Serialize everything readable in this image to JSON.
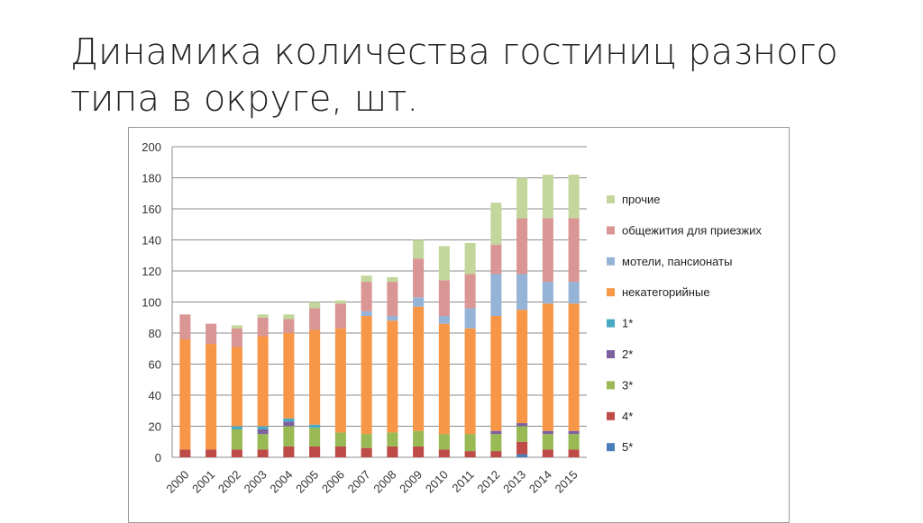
{
  "slide": {
    "title_line1": "Динамика количества гостиниц разного",
    "title_line2": "типа в округе, шт."
  },
  "chart_data": {
    "type": "bar",
    "stacked": true,
    "title": "",
    "xlabel": "",
    "ylabel": "",
    "ylim": [
      0,
      200
    ],
    "yticks": [
      0,
      20,
      40,
      60,
      80,
      100,
      120,
      140,
      160,
      180,
      200
    ],
    "grid": true,
    "legend_position": "right",
    "categories": [
      "2000",
      "2001",
      "2002",
      "2003",
      "2004",
      "2005",
      "2006",
      "2007",
      "2008",
      "2009",
      "2010",
      "2011",
      "2012",
      "2013",
      "2014",
      "2015"
    ],
    "series": [
      {
        "name": "5*",
        "color": "#4a7ebb",
        "values": [
          0,
          0,
          0,
          0,
          0,
          0,
          0,
          0,
          0,
          0,
          0,
          0,
          0,
          2,
          0,
          0
        ]
      },
      {
        "name": "4*",
        "color": "#be4b48",
        "values": [
          5,
          5,
          5,
          5,
          7,
          7,
          7,
          6,
          7,
          7,
          5,
          4,
          4,
          8,
          5,
          5
        ]
      },
      {
        "name": "3*",
        "color": "#98b954",
        "values": [
          0,
          0,
          13,
          10,
          13,
          12,
          9,
          9,
          9,
          10,
          10,
          11,
          11,
          10,
          10,
          10
        ]
      },
      {
        "name": "2*",
        "color": "#7d60a0",
        "values": [
          0,
          0,
          0,
          3,
          3,
          0,
          0,
          0,
          0,
          0,
          0,
          0,
          2,
          2,
          2,
          2
        ]
      },
      {
        "name": "1*",
        "color": "#46aac5",
        "values": [
          0,
          0,
          2,
          2,
          2,
          2,
          0,
          0,
          0,
          0,
          0,
          0,
          0,
          0,
          0,
          0
        ]
      },
      {
        "name": "некатегорийные",
        "color": "#f79646",
        "values": [
          71,
          68,
          51,
          58,
          55,
          61,
          67,
          76,
          72,
          80,
          71,
          68,
          74,
          73,
          82,
          82
        ]
      },
      {
        "name": "мотели, пансионаты",
        "color": "#95b3d7",
        "values": [
          0,
          0,
          0,
          0,
          0,
          0,
          0,
          3,
          3,
          6,
          5,
          13,
          27,
          23,
          14,
          14
        ]
      },
      {
        "name": "общежития для приезжих",
        "color": "#d99694",
        "values": [
          16,
          13,
          12,
          12,
          9,
          14,
          16,
          19,
          22,
          25,
          23,
          22,
          19,
          36,
          41,
          41
        ]
      },
      {
        "name": "прочие",
        "color": "#c3d69b",
        "values": [
          0,
          0,
          2,
          2,
          3,
          4,
          2,
          4,
          3,
          12,
          22,
          20,
          27,
          26,
          28,
          28
        ]
      }
    ]
  }
}
